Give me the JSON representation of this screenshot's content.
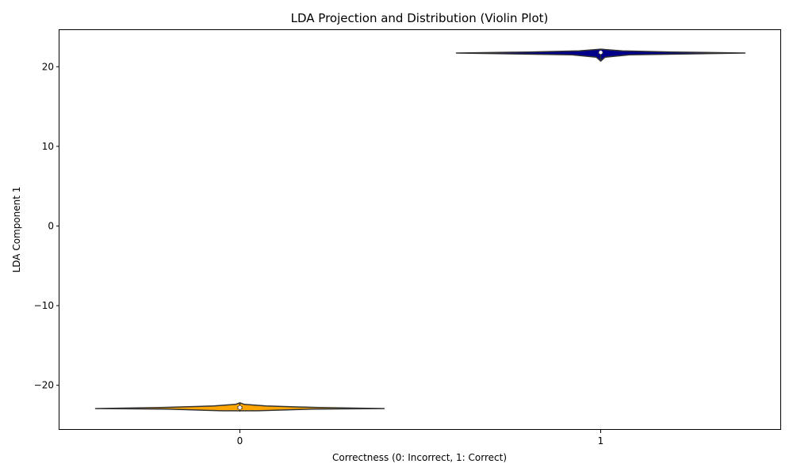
{
  "chart_data": {
    "type": "violin",
    "title": "LDA Projection and Distribution (Violin Plot)",
    "xlabel": "Correctness (0: Incorrect, 1: Correct)",
    "ylabel": "LDA Component 1",
    "categories": [
      "0",
      "1"
    ],
    "ylim": [
      -25.6,
      24.6
    ],
    "yticks": [
      -20,
      -10,
      0,
      10,
      20
    ],
    "yticklabels": [
      "−20",
      "−10",
      "0",
      "10",
      "20"
    ],
    "grid": false,
    "series": [
      {
        "category": "0",
        "color": "#ffa500",
        "min": -23.3,
        "q1": -23.0,
        "median": -22.8,
        "q3": -22.6,
        "max": -22.2,
        "profile": [
          {
            "y": -23.2,
            "w": 0.12
          },
          {
            "y": -23.0,
            "w": 0.5
          },
          {
            "y": -22.93,
            "w": 1.0
          },
          {
            "y": -22.8,
            "w": 0.55
          },
          {
            "y": -22.6,
            "w": 0.18
          },
          {
            "y": -22.4,
            "w": 0.03
          },
          {
            "y": -22.2,
            "w": 0.0
          }
        ]
      },
      {
        "category": "1",
        "color": "#00008b",
        "min": 20.7,
        "q1": 21.6,
        "median": 21.8,
        "q3": 21.9,
        "max": 22.2,
        "profile": [
          {
            "y": 20.7,
            "w": 0.0
          },
          {
            "y": 21.2,
            "w": 0.03
          },
          {
            "y": 21.5,
            "w": 0.2
          },
          {
            "y": 21.72,
            "w": 1.0
          },
          {
            "y": 21.85,
            "w": 0.5
          },
          {
            "y": 22.0,
            "w": 0.15
          },
          {
            "y": 22.2,
            "w": 0.0
          }
        ]
      }
    ]
  }
}
